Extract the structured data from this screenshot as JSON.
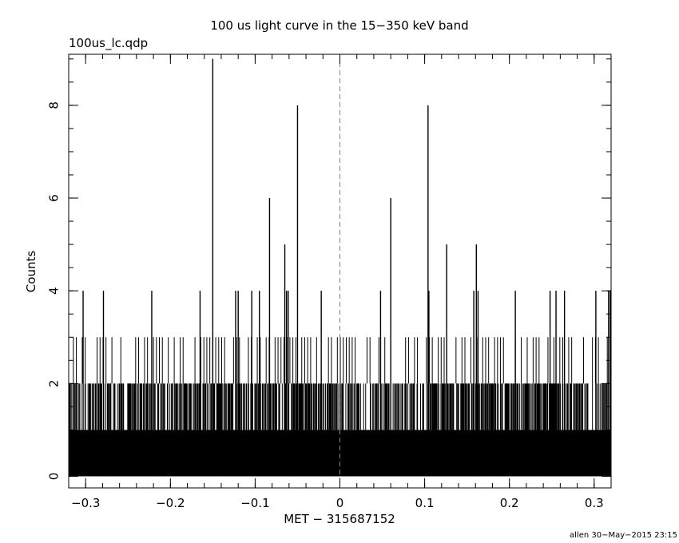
{
  "chart_data": {
    "type": "histogram-light-curve",
    "title": "100 us light curve in the 15−350 keV band",
    "file_label": "100us_lc.qdp",
    "xlabel": "MET − 315687152",
    "ylabel": "Counts",
    "footer": "allen 30−May−2015 23:15",
    "xlim": [
      -0.32,
      0.32
    ],
    "ylim": [
      -0.25,
      9.1
    ],
    "x_ticks": [
      -0.3,
      -0.2,
      -0.1,
      0,
      0.1,
      0.2,
      0.3
    ],
    "x_tick_labels": [
      "−0.3",
      "−0.2",
      "−0.1",
      "0",
      "0.1",
      "0.2",
      "0.3"
    ],
    "y_ticks": [
      0,
      2,
      4,
      6,
      8
    ],
    "y_tick_labels": [
      "0",
      "2",
      "4",
      "6",
      "8"
    ],
    "bin_width_s": 0.0001,
    "baseline_counts": 1,
    "reference_line": {
      "x": 0,
      "color": "#2aa9a9",
      "style": "dashed"
    },
    "peaks": [
      {
        "x": -0.15,
        "y": 9
      },
      {
        "x": -0.05,
        "y": 8
      },
      {
        "x": 0.104,
        "y": 8
      },
      {
        "x": -0.083,
        "y": 6
      },
      {
        "x": 0.06,
        "y": 6
      },
      {
        "x": -0.065,
        "y": 5
      },
      {
        "x": 0.126,
        "y": 5
      },
      {
        "x": 0.161,
        "y": 5
      },
      {
        "x": -0.303,
        "y": 4
      },
      {
        "x": -0.279,
        "y": 4
      },
      {
        "x": -0.222,
        "y": 4
      },
      {
        "x": -0.165,
        "y": 4
      },
      {
        "x": -0.123,
        "y": 4
      },
      {
        "x": -0.12,
        "y": 4
      },
      {
        "x": -0.104,
        "y": 4
      },
      {
        "x": -0.095,
        "y": 4
      },
      {
        "x": -0.063,
        "y": 4
      },
      {
        "x": -0.061,
        "y": 4
      },
      {
        "x": -0.022,
        "y": 4
      },
      {
        "x": 0.048,
        "y": 4
      },
      {
        "x": 0.105,
        "y": 4
      },
      {
        "x": 0.158,
        "y": 4
      },
      {
        "x": 0.163,
        "y": 4
      },
      {
        "x": 0.207,
        "y": 4
      },
      {
        "x": 0.248,
        "y": 4
      },
      {
        "x": 0.255,
        "y": 4
      },
      {
        "x": 0.265,
        "y": 4
      },
      {
        "x": 0.302,
        "y": 4
      },
      {
        "x": 0.317,
        "y": 4
      },
      {
        "x": 0.319,
        "y": 4
      }
    ]
  }
}
